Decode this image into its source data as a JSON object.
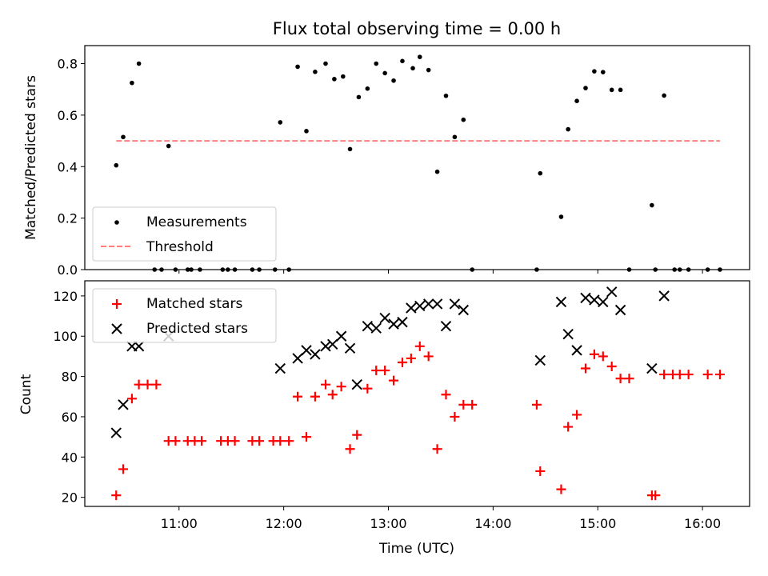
{
  "chart_data": [
    {
      "type": "scatter",
      "title": "Flux total observing time = 0.00 h",
      "xlabel": "",
      "ylabel": "Matched/Predicted stars",
      "xlim": [
        "10:06",
        "16:27"
      ],
      "ylim": [
        0,
        0.87
      ],
      "yticks": [
        0.0,
        0.2,
        0.4,
        0.6,
        0.8
      ],
      "ytick_labels": [
        "0.0",
        "0.2",
        "0.4",
        "0.6",
        "0.8"
      ],
      "legend_position": "lower-left",
      "series": [
        {
          "name": "Measurements",
          "marker": "dot",
          "color": "#000000",
          "points": [
            [
              "10:24",
              0.405
            ],
            [
              "10:28",
              0.515
            ],
            [
              "10:33",
              0.725
            ],
            [
              "10:37",
              0.8
            ],
            [
              "10:46",
              0.0
            ],
            [
              "10:50",
              0.0
            ],
            [
              "10:54",
              0.48
            ],
            [
              "10:58",
              0.0
            ],
            [
              "11:05",
              0.0
            ],
            [
              "11:07",
              0.0
            ],
            [
              "11:12",
              0.0
            ],
            [
              "11:25",
              0.0
            ],
            [
              "11:28",
              0.0
            ],
            [
              "11:32",
              0.0
            ],
            [
              "11:42",
              0.0
            ],
            [
              "11:46",
              0.0
            ],
            [
              "11:55",
              0.0
            ],
            [
              "11:58",
              0.572
            ],
            [
              "12:03",
              0.0
            ],
            [
              "12:08",
              0.788
            ],
            [
              "12:13",
              0.538
            ],
            [
              "12:18",
              0.768
            ],
            [
              "12:24",
              0.8
            ],
            [
              "12:29",
              0.74
            ],
            [
              "12:34",
              0.75
            ],
            [
              "12:38",
              0.468
            ],
            [
              "12:43",
              0.67
            ],
            [
              "12:48",
              0.703
            ],
            [
              "12:53",
              0.8
            ],
            [
              "12:58",
              0.763
            ],
            [
              "13:03",
              0.734
            ],
            [
              "13:08",
              0.81
            ],
            [
              "13:14",
              0.782
            ],
            [
              "13:18",
              0.826
            ],
            [
              "13:23",
              0.775
            ],
            [
              "13:28",
              0.38
            ],
            [
              "13:33",
              0.675
            ],
            [
              "13:38",
              0.515
            ],
            [
              "13:43",
              0.582
            ],
            [
              "13:48",
              0.0
            ],
            [
              "14:25",
              0.0
            ],
            [
              "14:27",
              0.374
            ],
            [
              "14:39",
              0.205
            ],
            [
              "14:43",
              0.545
            ],
            [
              "14:48",
              0.655
            ],
            [
              "14:53",
              0.705
            ],
            [
              "14:58",
              0.77
            ],
            [
              "15:03",
              0.767
            ],
            [
              "15:08",
              0.698
            ],
            [
              "15:13",
              0.698
            ],
            [
              "15:18",
              0.0
            ],
            [
              "15:31",
              0.25
            ],
            [
              "15:33",
              0.0
            ],
            [
              "15:38",
              0.676
            ],
            [
              "15:44",
              0.0
            ],
            [
              "15:47",
              0.0
            ],
            [
              "15:52",
              0.0
            ],
            [
              "16:03",
              0.0
            ],
            [
              "16:10",
              0.0
            ]
          ]
        },
        {
          "name": "Threshold",
          "line_style": "dashed",
          "color": "#ff7f7f",
          "points": [
            [
              "10:24",
              0.5
            ],
            [
              "16:10",
              0.5
            ]
          ]
        }
      ]
    },
    {
      "type": "scatter",
      "title": "",
      "xlabel": "Time (UTC)",
      "ylabel": "Count",
      "xlim": [
        "10:06",
        "16:27"
      ],
      "ylim": [
        15.5,
        127.5
      ],
      "xticks": [
        "11:00",
        "12:00",
        "13:00",
        "14:00",
        "15:00",
        "16:00"
      ],
      "yticks": [
        20,
        40,
        60,
        80,
        100,
        120
      ],
      "ytick_labels": [
        "20",
        "40",
        "60",
        "80",
        "100",
        "120"
      ],
      "legend_position": "upper-left",
      "series": [
        {
          "name": "Matched stars",
          "marker": "plus",
          "color": "#ff0000",
          "points": [
            [
              "10:24",
              21
            ],
            [
              "10:28",
              34
            ],
            [
              "10:33",
              69
            ],
            [
              "10:37",
              76
            ],
            [
              "10:42",
              76
            ],
            [
              "10:47",
              76
            ],
            [
              "10:54",
              48
            ],
            [
              "10:58",
              48
            ],
            [
              "11:05",
              48
            ],
            [
              "11:09",
              48
            ],
            [
              "11:13",
              48
            ],
            [
              "11:24",
              48
            ],
            [
              "11:28",
              48
            ],
            [
              "11:32",
              48
            ],
            [
              "11:42",
              48
            ],
            [
              "11:46",
              48
            ],
            [
              "11:54",
              48
            ],
            [
              "11:58",
              48
            ],
            [
              "12:03",
              48
            ],
            [
              "12:08",
              70
            ],
            [
              "12:13",
              50
            ],
            [
              "12:18",
              70
            ],
            [
              "12:24",
              76
            ],
            [
              "12:28",
              71
            ],
            [
              "12:33",
              75
            ],
            [
              "12:38",
              44
            ],
            [
              "12:42",
              51
            ],
            [
              "12:48",
              74
            ],
            [
              "12:53",
              83
            ],
            [
              "12:58",
              83
            ],
            [
              "13:03",
              78
            ],
            [
              "13:08",
              87
            ],
            [
              "13:13",
              89
            ],
            [
              "13:18",
              95
            ],
            [
              "13:23",
              90
            ],
            [
              "13:28",
              44
            ],
            [
              "13:33",
              71
            ],
            [
              "13:38",
              60
            ],
            [
              "13:43",
              66
            ],
            [
              "13:48",
              66
            ],
            [
              "14:25",
              66
            ],
            [
              "14:27",
              33
            ],
            [
              "14:39",
              24
            ],
            [
              "14:43",
              55
            ],
            [
              "14:48",
              61
            ],
            [
              "14:53",
              84
            ],
            [
              "14:58",
              91
            ],
            [
              "15:03",
              90
            ],
            [
              "15:08",
              85
            ],
            [
              "15:13",
              79
            ],
            [
              "15:18",
              79
            ],
            [
              "15:31",
              21
            ],
            [
              "15:33",
              21
            ],
            [
              "15:38",
              81
            ],
            [
              "15:43",
              81
            ],
            [
              "15:47",
              81
            ],
            [
              "15:52",
              81
            ],
            [
              "16:03",
              81
            ],
            [
              "16:10",
              81
            ]
          ]
        },
        {
          "name": "Predicted stars",
          "marker": "x",
          "color": "#000000",
          "points": [
            [
              "10:24",
              52
            ],
            [
              "10:28",
              66
            ],
            [
              "10:33",
              95
            ],
            [
              "10:37",
              95
            ],
            [
              "10:54",
              100
            ],
            [
              "11:58",
              84
            ],
            [
              "12:08",
              89
            ],
            [
              "12:13",
              93
            ],
            [
              "12:18",
              91
            ],
            [
              "12:24",
              95
            ],
            [
              "12:28",
              96
            ],
            [
              "12:33",
              100
            ],
            [
              "12:38",
              94
            ],
            [
              "12:42",
              76
            ],
            [
              "12:48",
              105
            ],
            [
              "12:53",
              104
            ],
            [
              "12:58",
              109
            ],
            [
              "13:03",
              106
            ],
            [
              "13:08",
              107
            ],
            [
              "13:13",
              114
            ],
            [
              "13:18",
              115
            ],
            [
              "13:23",
              116
            ],
            [
              "13:28",
              116
            ],
            [
              "13:33",
              105
            ],
            [
              "13:38",
              116
            ],
            [
              "13:43",
              113
            ],
            [
              "14:27",
              88
            ],
            [
              "14:39",
              117
            ],
            [
              "14:43",
              101
            ],
            [
              "14:48",
              93
            ],
            [
              "14:53",
              119
            ],
            [
              "14:58",
              118
            ],
            [
              "15:03",
              117
            ],
            [
              "15:08",
              122
            ],
            [
              "15:13",
              113
            ],
            [
              "15:31",
              84
            ],
            [
              "15:38",
              120
            ]
          ]
        }
      ]
    }
  ]
}
